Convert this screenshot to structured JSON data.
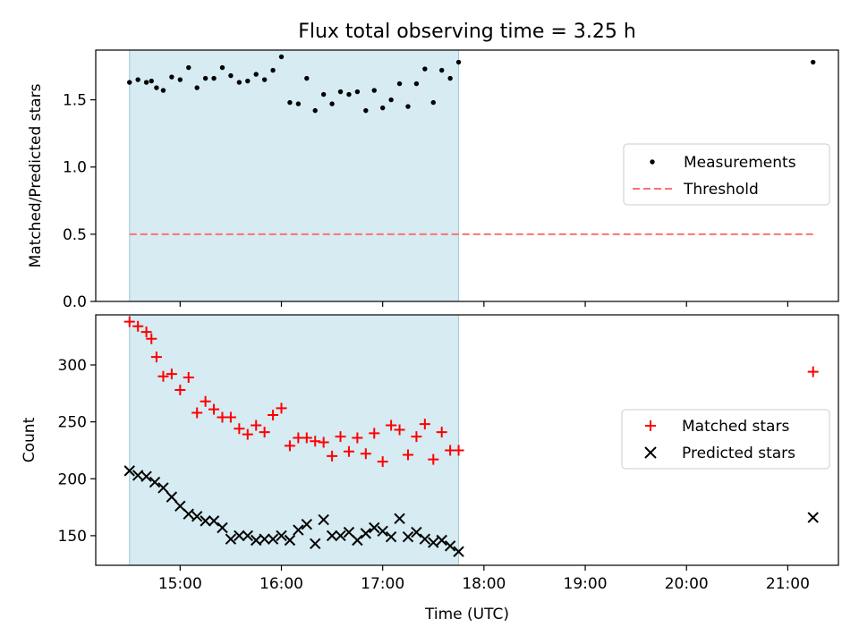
{
  "figure": {
    "title": "Flux total observing time = 3.25 h",
    "xlabel": "Time (UTC)"
  },
  "chart_data": [
    {
      "type": "scatter",
      "panel": "top",
      "ylabel": "Matched/Predicted stars",
      "xlim": [
        "14:10",
        "21:30"
      ],
      "ylim": [
        0,
        1.87
      ],
      "xticks": [
        "15:00",
        "16:00",
        "17:00",
        "18:00",
        "19:00",
        "20:00",
        "21:00"
      ],
      "yticks": [
        0.0,
        0.5,
        1.0,
        1.5
      ],
      "ytick_labels": [
        "0.0",
        "0.5",
        "1.0",
        "1.5"
      ],
      "shaded_span": [
        "14:30",
        "17:45"
      ],
      "legend_position": "center-right",
      "series": [
        {
          "name": "Measurements",
          "kind": "scatter-dot",
          "color": "#000000",
          "x": [
            "14:30",
            "14:35",
            "14:40",
            "14:43",
            "14:46",
            "14:50",
            "14:55",
            "15:00",
            "15:05",
            "15:10",
            "15:15",
            "15:20",
            "15:25",
            "15:30",
            "15:35",
            "15:40",
            "15:45",
            "15:50",
            "15:55",
            "16:00",
            "16:05",
            "16:10",
            "16:15",
            "16:20",
            "16:25",
            "16:30",
            "16:35",
            "16:40",
            "16:45",
            "16:50",
            "16:55",
            "17:00",
            "17:05",
            "17:10",
            "17:15",
            "17:20",
            "17:25",
            "17:30",
            "17:35",
            "17:40",
            "17:45",
            "21:15"
          ],
          "y": [
            1.63,
            1.65,
            1.63,
            1.64,
            1.59,
            1.57,
            1.67,
            1.65,
            1.74,
            1.59,
            1.66,
            1.66,
            1.74,
            1.68,
            1.63,
            1.64,
            1.69,
            1.65,
            1.72,
            1.82,
            1.48,
            1.47,
            1.66,
            1.42,
            1.54,
            1.47,
            1.56,
            1.54,
            1.56,
            1.42,
            1.57,
            1.44,
            1.5,
            1.62,
            1.45,
            1.62,
            1.73,
            1.48,
            1.72,
            1.66,
            1.78,
            1.78
          ]
        },
        {
          "name": "Threshold",
          "kind": "dashed-line",
          "color": "#ff7070",
          "x": [
            "14:30",
            "21:15"
          ],
          "y": [
            0.5,
            0.5
          ]
        }
      ]
    },
    {
      "type": "scatter",
      "panel": "bottom",
      "ylabel": "Count",
      "xlabel": "Time (UTC)",
      "xlim": [
        "14:10",
        "21:30"
      ],
      "ylim": [
        124,
        344
      ],
      "xticks": [
        "15:00",
        "16:00",
        "17:00",
        "18:00",
        "19:00",
        "20:00",
        "21:00"
      ],
      "yticks": [
        150,
        200,
        250,
        300
      ],
      "ytick_labels": [
        "150",
        "200",
        "250",
        "300"
      ],
      "shaded_span": [
        "14:30",
        "17:45"
      ],
      "legend_position": "center-right",
      "series": [
        {
          "name": "Matched stars",
          "kind": "plus",
          "color": "#ff0000",
          "x": [
            "14:30",
            "14:35",
            "14:40",
            "14:43",
            "14:46",
            "14:50",
            "14:55",
            "15:00",
            "15:05",
            "15:10",
            "15:15",
            "15:20",
            "15:25",
            "15:30",
            "15:35",
            "15:40",
            "15:45",
            "15:50",
            "15:55",
            "16:00",
            "16:05",
            "16:10",
            "16:15",
            "16:20",
            "16:25",
            "16:30",
            "16:35",
            "16:40",
            "16:45",
            "16:50",
            "16:55",
            "17:00",
            "17:05",
            "17:10",
            "17:15",
            "17:20",
            "17:25",
            "17:30",
            "17:35",
            "17:40",
            "17:45",
            "21:15"
          ],
          "y": [
            338,
            334,
            329,
            323,
            307,
            290,
            292,
            278,
            289,
            258,
            268,
            261,
            254,
            254,
            244,
            239,
            247,
            241,
            256,
            262,
            229,
            236,
            236,
            233,
            232,
            220,
            237,
            224,
            236,
            222,
            240,
            215,
            247,
            243,
            221,
            237,
            248,
            217,
            241,
            225,
            225,
            294
          ]
        },
        {
          "name": "Predicted stars",
          "kind": "x",
          "color": "#000000",
          "x": [
            "14:30",
            "14:35",
            "14:40",
            "14:45",
            "14:50",
            "14:55",
            "15:00",
            "15:05",
            "15:10",
            "15:15",
            "15:20",
            "15:25",
            "15:30",
            "15:35",
            "15:40",
            "15:45",
            "15:50",
            "15:55",
            "16:00",
            "16:05",
            "16:10",
            "16:15",
            "16:20",
            "16:25",
            "16:30",
            "16:35",
            "16:40",
            "16:45",
            "16:50",
            "16:55",
            "17:00",
            "17:05",
            "17:10",
            "17:15",
            "17:20",
            "17:25",
            "17:30",
            "17:35",
            "17:40",
            "17:45",
            "21:15"
          ],
          "y": [
            207,
            203,
            202,
            197,
            192,
            184,
            176,
            169,
            167,
            163,
            163,
            157,
            147,
            150,
            150,
            146,
            147,
            147,
            150,
            146,
            155,
            160,
            143,
            164,
            150,
            150,
            153,
            146,
            152,
            157,
            154,
            149,
            165,
            149,
            153,
            147,
            144,
            146,
            141,
            136,
            166
          ]
        }
      ]
    }
  ]
}
